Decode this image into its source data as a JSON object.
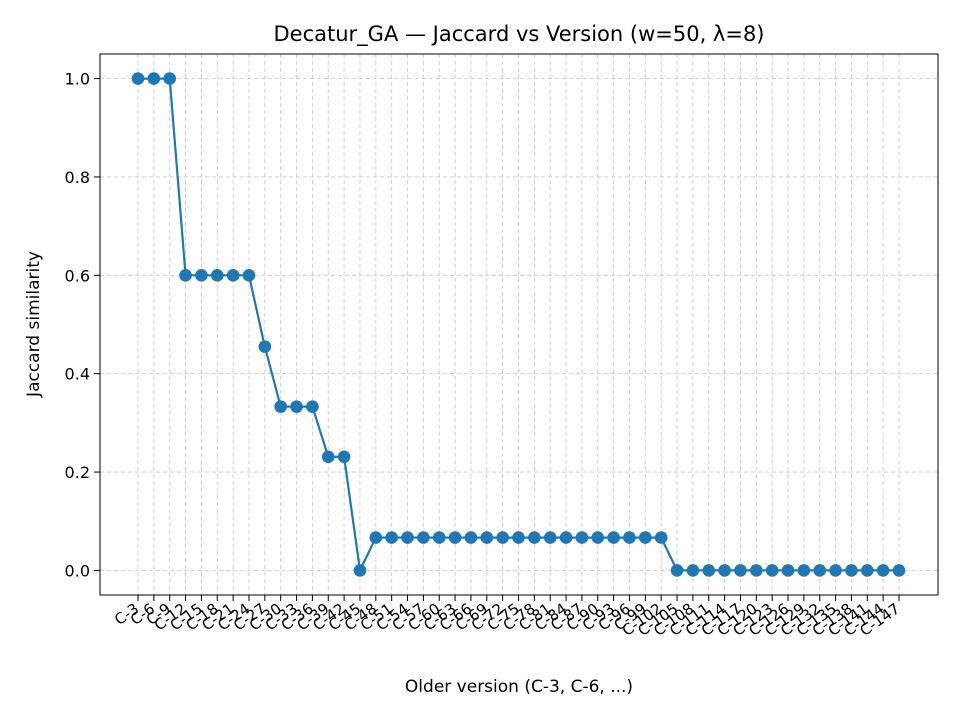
{
  "chart_data": {
    "type": "line",
    "title": "Decatur_GA — Jaccard vs Version (w=50, λ=8)",
    "xlabel": "Older version (C-3, C-6, ...)",
    "ylabel": "Jaccard similarity",
    "ylim": [
      -0.05,
      1.05
    ],
    "yticks": [
      "0.0",
      "0.2",
      "0.4",
      "0.6",
      "0.8",
      "1.0"
    ],
    "grid": true,
    "categories": [
      "C-3",
      "C-6",
      "C-9",
      "C-12",
      "C-15",
      "C-18",
      "C-21",
      "C-24",
      "C-27",
      "C-30",
      "C-33",
      "C-36",
      "C-39",
      "C-42",
      "C-45",
      "C-48",
      "C-51",
      "C-54",
      "C-57",
      "C-60",
      "C-63",
      "C-66",
      "C-69",
      "C-72",
      "C-75",
      "C-78",
      "C-81",
      "C-84",
      "C-87",
      "C-90",
      "C-93",
      "C-96",
      "C-99",
      "C-102",
      "C-105",
      "C-108",
      "C-111",
      "C-114",
      "C-117",
      "C-120",
      "C-123",
      "C-126",
      "C-129",
      "C-132",
      "C-135",
      "C-138",
      "C-141",
      "C-144",
      "C-147"
    ],
    "series": [
      {
        "color": "#1f77b4",
        "values": [
          1.0,
          1.0,
          1.0,
          0.6,
          0.6,
          0.6,
          0.6,
          0.6,
          0.455,
          0.333,
          0.333,
          0.333,
          0.231,
          0.231,
          0.0,
          0.0667,
          0.0667,
          0.0667,
          0.0667,
          0.0667,
          0.0667,
          0.0667,
          0.0667,
          0.0667,
          0.0667,
          0.0667,
          0.0667,
          0.0667,
          0.0667,
          0.0667,
          0.0667,
          0.0667,
          0.0667,
          0.0667,
          0.0,
          0.0,
          0.0,
          0.0,
          0.0,
          0.0,
          0.0,
          0.0,
          0.0,
          0.0,
          0.0,
          0.0,
          0.0,
          0.0,
          0.0
        ]
      }
    ]
  }
}
